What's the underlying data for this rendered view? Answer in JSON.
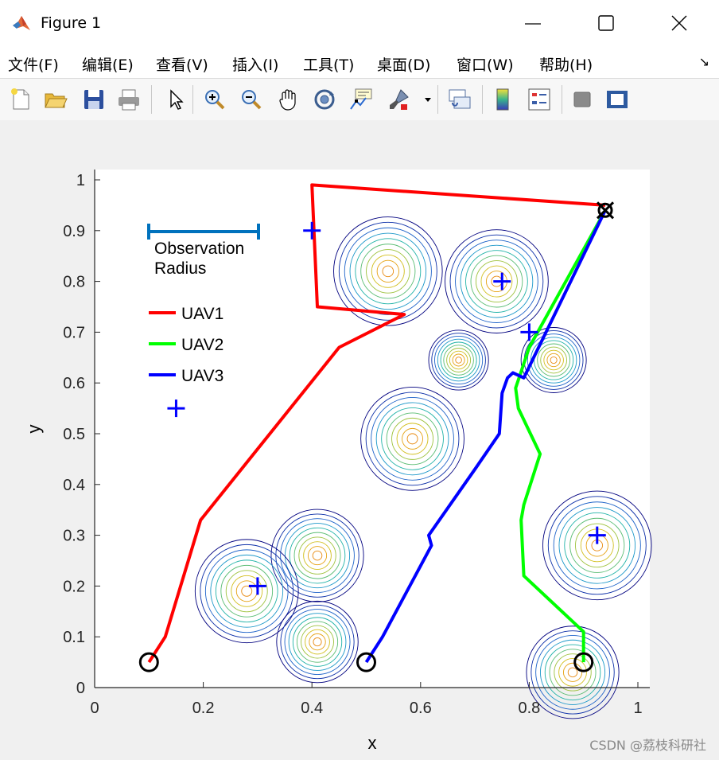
{
  "window": {
    "title": "Figure 1"
  },
  "menu": {
    "items": [
      "文件(F)",
      "编辑(E)",
      "查看(V)",
      "插入(I)",
      "工具(T)",
      "桌面(D)",
      "窗口(W)",
      "帮助(H)"
    ]
  },
  "toolbar": {
    "icons": [
      "new-figure-icon",
      "open-file-icon",
      "save-icon",
      "print-icon",
      "pointer-icon",
      "zoom-in-icon",
      "zoom-out-icon",
      "pan-icon",
      "rotate-3d-icon",
      "data-cursor-icon",
      "brush-icon",
      "link-plot-icon",
      "colorbar-icon",
      "legend-icon",
      "hide-plot-tools-icon",
      "show-plot-tools-icon"
    ]
  },
  "watermark": "CSDN @荔枝科研社",
  "chart_data": {
    "type": "line",
    "xlabel": "x",
    "ylabel": "y",
    "xlim": [
      0,
      1.02
    ],
    "ylim": [
      0,
      1.02
    ],
    "x_ticks": [
      "0",
      "0.2",
      "0.4",
      "0.6",
      "0.8",
      "1"
    ],
    "y_ticks": [
      "0",
      "0.1",
      "0.2",
      "0.3",
      "0.4",
      "0.5",
      "0.6",
      "0.7",
      "0.8",
      "0.9",
      "1"
    ],
    "grid": false,
    "legend": {
      "placement": "top-left",
      "observation_label_line1": "Observation",
      "observation_label_line2": "Radius",
      "observation_radius": 0.2,
      "observation_radius_color": "#0072bd"
    },
    "series": [
      {
        "name": "UAV1",
        "color": "#ff0000",
        "x": [
          0.1,
          0.13,
          0.195,
          0.45,
          0.57,
          0.41,
          0.4,
          0.94
        ],
        "y": [
          0.05,
          0.1,
          0.33,
          0.67,
          0.735,
          0.75,
          0.99,
          0.95
        ]
      },
      {
        "name": "UAV2",
        "color": "#00ff00",
        "x": [
          0.9,
          0.9,
          0.79,
          0.785,
          0.79,
          0.82,
          0.78,
          0.775,
          0.8,
          0.94
        ],
        "y": [
          0.05,
          0.11,
          0.22,
          0.33,
          0.36,
          0.46,
          0.55,
          0.59,
          0.67,
          0.94
        ]
      },
      {
        "name": "UAV3",
        "color": "#0000ff",
        "x": [
          0.5,
          0.53,
          0.62,
          0.615,
          0.7,
          0.745,
          0.75,
          0.76,
          0.77,
          0.79,
          0.94
        ],
        "y": [
          0.05,
          0.1,
          0.28,
          0.3,
          0.43,
          0.5,
          0.58,
          0.61,
          0.62,
          0.61,
          0.94
        ]
      }
    ],
    "targets": {
      "marker": "+",
      "color": "#0000ff",
      "points": [
        [
          0.4,
          0.9
        ],
        [
          0.75,
          0.8
        ],
        [
          0.8,
          0.7
        ],
        [
          0.3,
          0.2
        ],
        [
          0.925,
          0.3
        ],
        [
          0.15,
          0.55
        ]
      ]
    },
    "starts": {
      "marker": "circle",
      "points": [
        [
          0.1,
          0.05
        ],
        [
          0.5,
          0.05
        ],
        [
          0.9,
          0.05
        ]
      ]
    },
    "goal": {
      "marker": "circle-x",
      "point": [
        0.94,
        0.94
      ]
    },
    "contour_peaks": [
      {
        "x": 0.54,
        "y": 0.82,
        "size": 0.1
      },
      {
        "x": 0.74,
        "y": 0.8,
        "size": 0.095
      },
      {
        "x": 0.67,
        "y": 0.645,
        "size": 0.055
      },
      {
        "x": 0.845,
        "y": 0.645,
        "size": 0.06
      },
      {
        "x": 0.585,
        "y": 0.49,
        "size": 0.095
      },
      {
        "x": 0.41,
        "y": 0.26,
        "size": 0.085
      },
      {
        "x": 0.28,
        "y": 0.19,
        "size": 0.095
      },
      {
        "x": 0.41,
        "y": 0.09,
        "size": 0.075
      },
      {
        "x": 0.925,
        "y": 0.28,
        "size": 0.1
      },
      {
        "x": 0.88,
        "y": 0.03,
        "size": 0.085
      }
    ],
    "contour_colors": [
      "#00007f",
      "#0b2ea8",
      "#1e63c9",
      "#1c98c9",
      "#22b3a8",
      "#5bbd74",
      "#9ec23d",
      "#d2bf1f",
      "#e6a214",
      "#e88a10"
    ]
  }
}
